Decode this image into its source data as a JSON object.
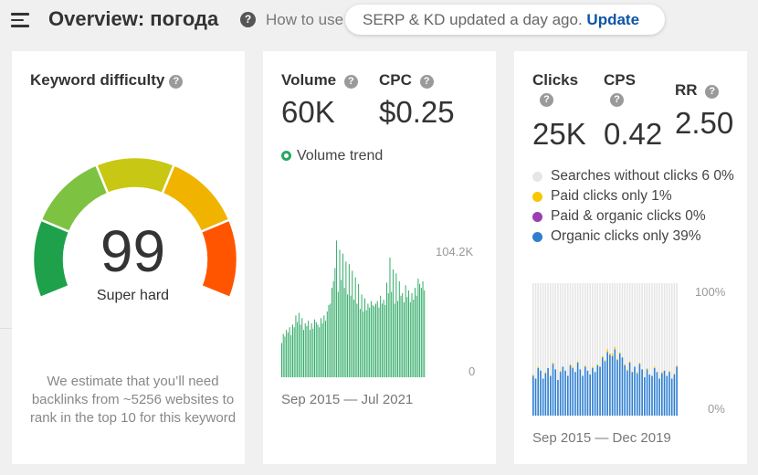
{
  "header": {
    "title": "Overview: погода",
    "help_icon": "question-circle-icon",
    "howto_text": "How to use",
    "notice_text": "SERP & KD updated a day ago.",
    "notice_action": "Update"
  },
  "keyword_difficulty": {
    "title": "Keyword difficulty",
    "value": "99",
    "label": "Super hard",
    "estimate_text": "We estimate that you’ll need backlinks from ~5256 websites to rank in the top 10 for this keyword",
    "gauge_segments": [
      "#1ea14a",
      "#7dc241",
      "#c8c814",
      "#f0b400",
      "#ff5500"
    ]
  },
  "volume_card": {
    "volume_label": "Volume",
    "volume_value": "60K",
    "cpc_label": "CPC",
    "cpc_value": "$0.25",
    "trend_label": "Volume trend",
    "trend_color": "#27a860",
    "y_max_label": "104.2K",
    "y_min_label": "0",
    "date_range": "Sep 2015 — Jul 2021"
  },
  "clicks_card": {
    "clicks_label": "Clicks",
    "clicks_value": "25K",
    "cps_label": "CPS",
    "cps_value": "0.42",
    "rr_label": "RR",
    "rr_value": "2.50",
    "legend": [
      {
        "label": "Searches without clicks 6 0%",
        "color": "#e6e6e6"
      },
      {
        "label": "Paid clicks only 1%",
        "color": "#f5c800"
      },
      {
        "label": "Paid & organic clicks 0%",
        "color": "#9b3fb5"
      },
      {
        "label": "Organic clicks only 39%",
        "color": "#2f7fd0"
      }
    ],
    "y_max_label": "100%",
    "y_min_label": "0%",
    "date_range": "Sep 2015 — Dec 2019"
  },
  "chart_data": [
    {
      "type": "bar",
      "title": "Volume trend",
      "x_range": [
        "Sep 2015",
        "Jul 2021"
      ],
      "ylim": [
        0,
        104200
      ],
      "y_tick_labels": [
        "0",
        "104.2K"
      ],
      "series": [
        {
          "name": "Volume trend",
          "color": "#27a860",
          "values": [
            26000,
            33000,
            31000,
            36000,
            34000,
            38000,
            32000,
            40000,
            38000,
            47000,
            42000,
            49000,
            40000,
            45000,
            36000,
            41000,
            39000,
            43000,
            36000,
            41000,
            37000,
            44000,
            42000,
            40000,
            38000,
            45000,
            41000,
            47000,
            43000,
            50000,
            55000,
            56000,
            68000,
            73000,
            83000,
            104000,
            65000,
            97000,
            74000,
            94000,
            68000,
            88000,
            63000,
            86000,
            62000,
            81000,
            59000,
            76000,
            56000,
            71000,
            52000,
            63000,
            50000,
            60000,
            51000,
            56000,
            53000,
            58000,
            55000,
            54000,
            56000,
            58000,
            53000,
            62000,
            56000,
            59000,
            55000,
            72000,
            64000,
            91000,
            65000,
            82000,
            56000,
            79000,
            58000,
            73000,
            62000,
            64000,
            57000,
            70000,
            61000,
            66000,
            57000,
            64000,
            59000,
            68000,
            62000,
            75000,
            71000,
            68000,
            73000,
            66000
          ]
        }
      ]
    },
    {
      "type": "bar",
      "title": "Clicks",
      "x_range": [
        "Sep 2015",
        "Dec 2019"
      ],
      "ylim": [
        0,
        100
      ],
      "y_tick_labels": [
        "0%",
        "100%"
      ],
      "series": [
        {
          "name": "Organic clicks only",
          "color": "#2f7fd0",
          "values": [
            30,
            28,
            36,
            34,
            28,
            32,
            36,
            30,
            39,
            35,
            27,
            33,
            37,
            34,
            30,
            38,
            36,
            33,
            40,
            35,
            30,
            37,
            34,
            31,
            36,
            33,
            38,
            37,
            44,
            41,
            48,
            46,
            45,
            50,
            42,
            47,
            44,
            38,
            34,
            40,
            33,
            37,
            32,
            39,
            35,
            29,
            35,
            31,
            30,
            36,
            33,
            28,
            32,
            34,
            30,
            33,
            28,
            31,
            37
          ]
        },
        {
          "name": "Paid clicks only",
          "color": "#f5c800",
          "values": [
            1,
            0,
            1,
            0,
            0,
            1,
            0,
            0,
            1,
            0,
            0,
            1,
            0,
            0,
            0,
            1,
            1,
            0,
            1,
            0,
            0,
            1,
            0,
            0,
            1,
            0,
            1,
            0,
            1,
            1,
            2,
            1,
            2,
            2,
            1,
            1,
            0,
            1,
            1,
            1,
            0,
            0,
            1,
            1,
            0,
            0,
            1,
            0,
            0,
            1,
            0,
            0,
            1,
            0,
            0,
            1,
            0,
            1,
            1
          ]
        },
        {
          "name": "Searches without clicks",
          "color": "#e6e6e6",
          "values": [
            69,
            72,
            63,
            66,
            72,
            67,
            64,
            70,
            60,
            65,
            73,
            66,
            63,
            66,
            70,
            61,
            63,
            67,
            59,
            65,
            70,
            62,
            66,
            69,
            63,
            67,
            61,
            63,
            55,
            58,
            50,
            53,
            53,
            48,
            57,
            52,
            56,
            61,
            65,
            59,
            67,
            63,
            67,
            60,
            65,
            71,
            64,
            69,
            70,
            63,
            67,
            72,
            67,
            66,
            70,
            66,
            72,
            68,
            62
          ]
        }
      ]
    }
  ]
}
